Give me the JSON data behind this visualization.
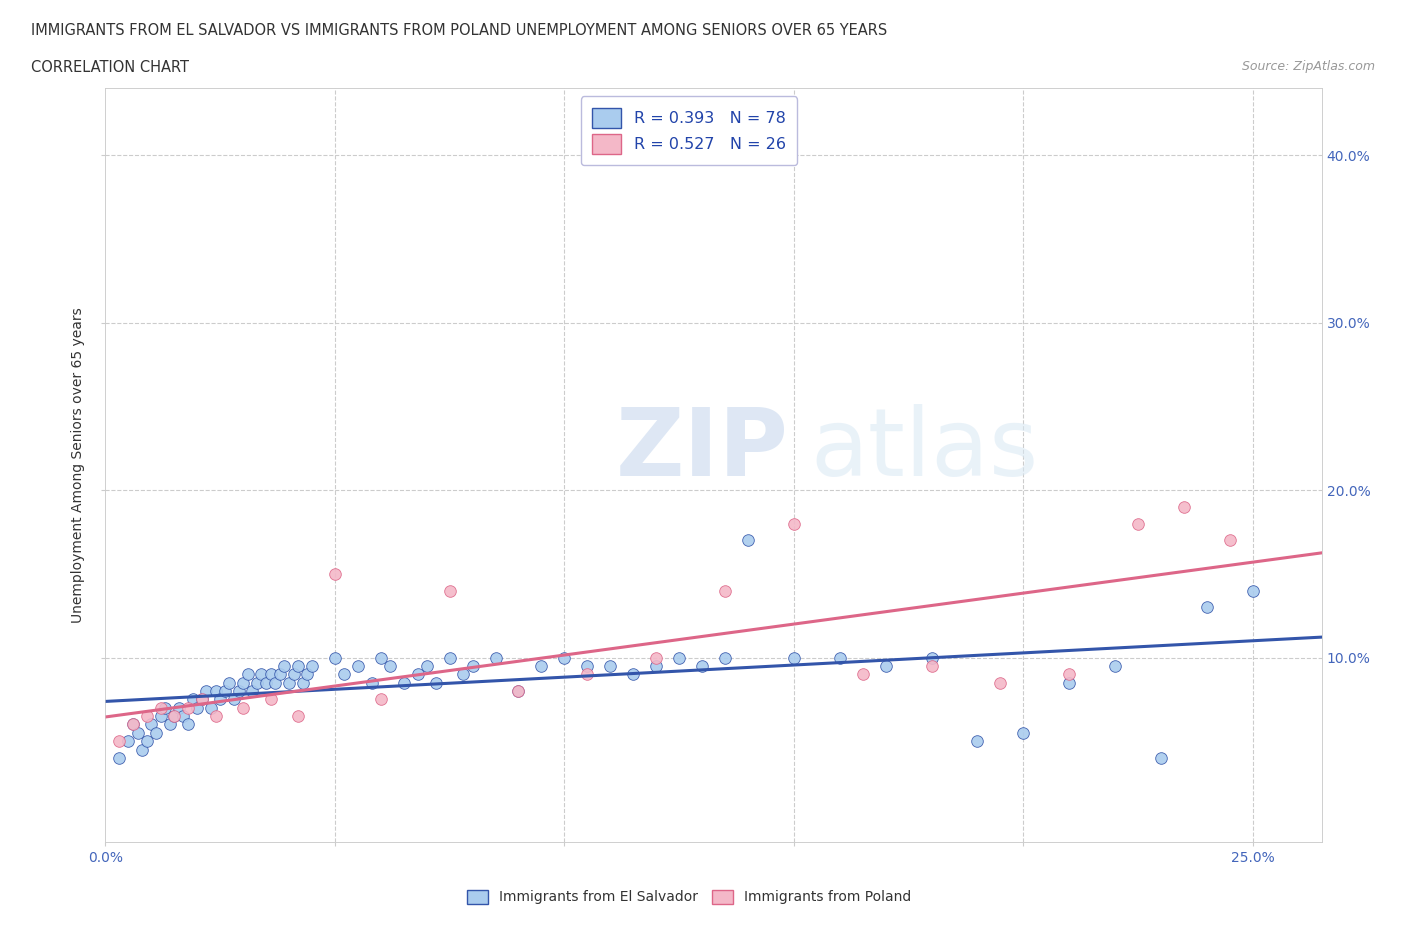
{
  "title_line1": "IMMIGRANTS FROM EL SALVADOR VS IMMIGRANTS FROM POLAND UNEMPLOYMENT AMONG SENIORS OVER 65 YEARS",
  "title_line2": "CORRELATION CHART",
  "source": "Source: ZipAtlas.com",
  "ylabel": "Unemployment Among Seniors over 65 years",
  "xlim": [
    0.0,
    0.265
  ],
  "ylim": [
    -0.01,
    0.44
  ],
  "el_salvador_color": "#aaccee",
  "poland_color": "#f4b8c8",
  "el_salvador_line_color": "#3355aa",
  "poland_line_color": "#dd6688",
  "legend_r1": "R = 0.393   N = 78",
  "legend_r2": "R = 0.527   N = 26",
  "watermark_zip": "ZIP",
  "watermark_atlas": "atlas",
  "el_salvador_x": [
    0.003,
    0.005,
    0.006,
    0.007,
    0.008,
    0.009,
    0.01,
    0.011,
    0.012,
    0.013,
    0.014,
    0.015,
    0.016,
    0.017,
    0.018,
    0.019,
    0.02,
    0.021,
    0.022,
    0.023,
    0.024,
    0.025,
    0.026,
    0.027,
    0.028,
    0.029,
    0.03,
    0.031,
    0.032,
    0.033,
    0.034,
    0.035,
    0.036,
    0.037,
    0.038,
    0.039,
    0.04,
    0.041,
    0.042,
    0.043,
    0.044,
    0.045,
    0.05,
    0.052,
    0.055,
    0.058,
    0.06,
    0.062,
    0.065,
    0.068,
    0.07,
    0.072,
    0.075,
    0.078,
    0.08,
    0.085,
    0.09,
    0.095,
    0.1,
    0.105,
    0.11,
    0.115,
    0.12,
    0.125,
    0.13,
    0.135,
    0.14,
    0.15,
    0.16,
    0.17,
    0.18,
    0.19,
    0.2,
    0.21,
    0.22,
    0.23,
    0.24,
    0.25
  ],
  "el_salvador_y": [
    0.04,
    0.05,
    0.06,
    0.055,
    0.045,
    0.05,
    0.06,
    0.055,
    0.065,
    0.07,
    0.06,
    0.065,
    0.07,
    0.065,
    0.06,
    0.075,
    0.07,
    0.075,
    0.08,
    0.07,
    0.08,
    0.075,
    0.08,
    0.085,
    0.075,
    0.08,
    0.085,
    0.09,
    0.08,
    0.085,
    0.09,
    0.085,
    0.09,
    0.085,
    0.09,
    0.095,
    0.085,
    0.09,
    0.095,
    0.085,
    0.09,
    0.095,
    0.1,
    0.09,
    0.095,
    0.085,
    0.1,
    0.095,
    0.085,
    0.09,
    0.095,
    0.085,
    0.1,
    0.09,
    0.095,
    0.1,
    0.08,
    0.095,
    0.1,
    0.095,
    0.095,
    0.09,
    0.095,
    0.1,
    0.095,
    0.1,
    0.17,
    0.1,
    0.1,
    0.095,
    0.1,
    0.05,
    0.055,
    0.085,
    0.095,
    0.04,
    0.13,
    0.14
  ],
  "poland_x": [
    0.003,
    0.006,
    0.009,
    0.012,
    0.015,
    0.018,
    0.021,
    0.024,
    0.03,
    0.036,
    0.042,
    0.05,
    0.06,
    0.075,
    0.09,
    0.105,
    0.12,
    0.135,
    0.15,
    0.165,
    0.18,
    0.195,
    0.21,
    0.225,
    0.235,
    0.245
  ],
  "poland_y": [
    0.05,
    0.06,
    0.065,
    0.07,
    0.065,
    0.07,
    0.075,
    0.065,
    0.07,
    0.075,
    0.065,
    0.15,
    0.075,
    0.14,
    0.08,
    0.09,
    0.1,
    0.14,
    0.18,
    0.09,
    0.095,
    0.085,
    0.09,
    0.18,
    0.19,
    0.17
  ]
}
